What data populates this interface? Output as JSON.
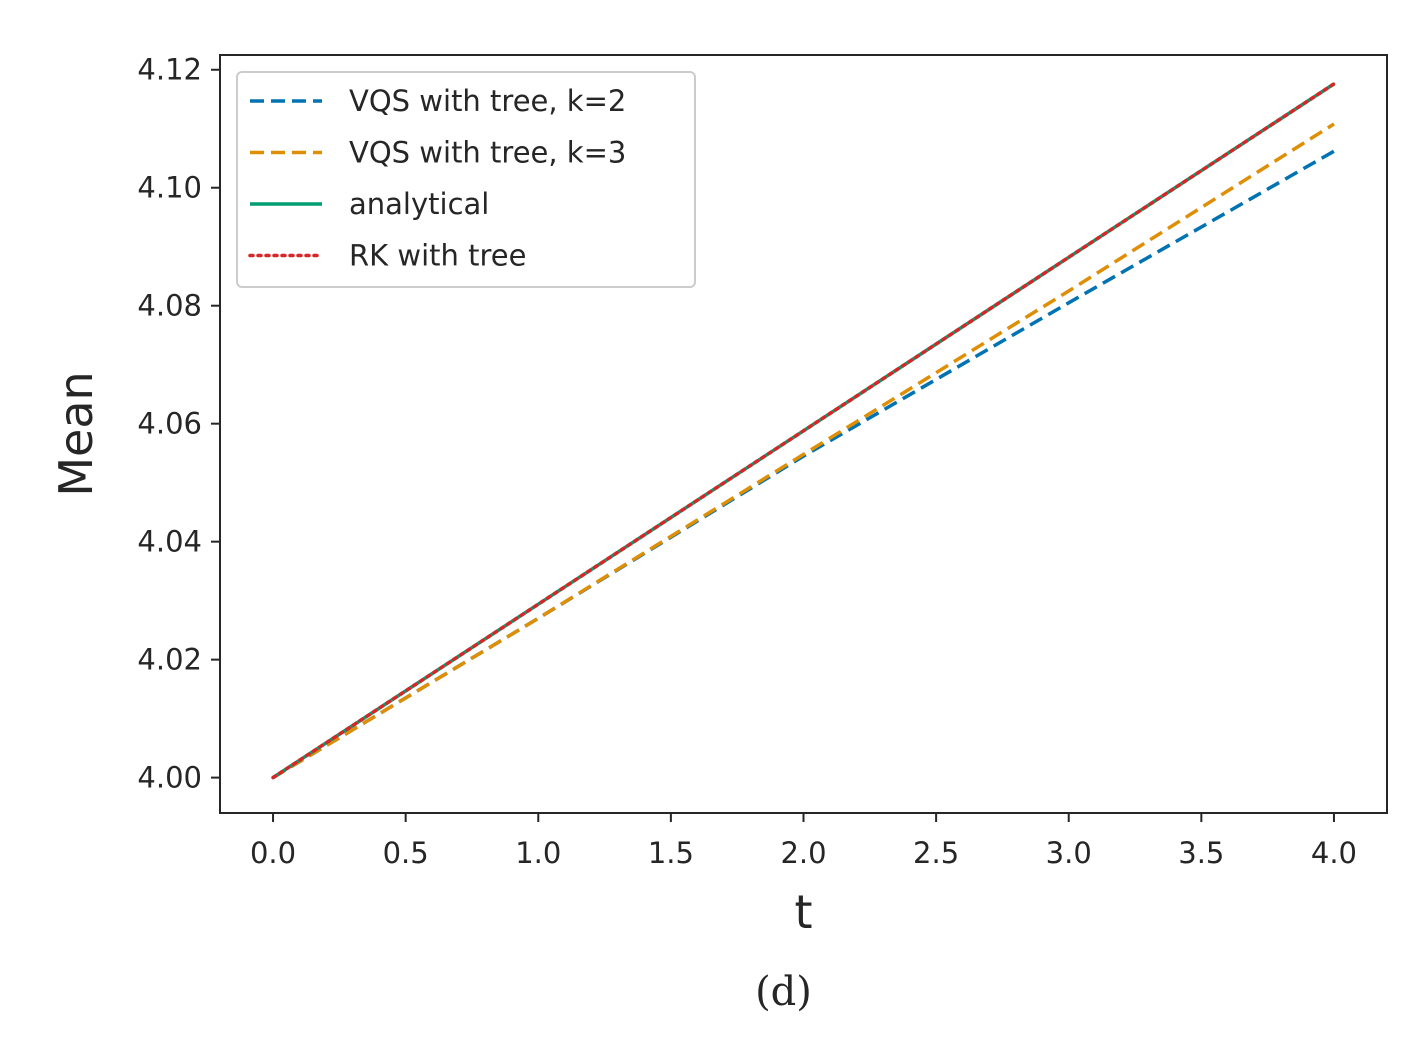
{
  "chart_data": {
    "type": "line",
    "xlabel": "t",
    "ylabel": "Mean",
    "caption": "(d)",
    "xlim": [
      -0.2,
      4.2
    ],
    "ylim": [
      3.994,
      4.1225
    ],
    "xticks": [
      0.0,
      0.5,
      1.0,
      1.5,
      2.0,
      2.5,
      3.0,
      3.5,
      4.0
    ],
    "xtick_labels": [
      "0.0",
      "0.5",
      "1.0",
      "1.5",
      "2.0",
      "2.5",
      "3.0",
      "3.5",
      "4.0"
    ],
    "yticks": [
      4.0,
      4.02,
      4.04,
      4.06,
      4.08,
      4.1,
      4.12
    ],
    "ytick_labels": [
      "4.00",
      "4.02",
      "4.04",
      "4.06",
      "4.08",
      "4.10",
      "4.12"
    ],
    "grid": false,
    "legend_position": "top-left",
    "x": [
      0.0,
      1.0,
      2.0,
      3.0,
      4.0
    ],
    "series": [
      {
        "name": "VQS with tree, k=2",
        "color": "#0173b2",
        "style": "dashed",
        "values": [
          4.0,
          4.027,
          4.0545,
          4.0805,
          4.1062
        ]
      },
      {
        "name": "VQS with tree, k=3",
        "color": "#de8f05",
        "style": "dashed",
        "values": [
          4.0,
          4.027,
          4.0548,
          4.0825,
          4.1108
        ]
      },
      {
        "name": "analytical",
        "color": "#029e73",
        "style": "solid",
        "values": [
          4.0,
          4.0294,
          4.0588,
          4.0882,
          4.1176
        ]
      },
      {
        "name": "RK with tree",
        "color": "#d62728",
        "style": "dotted",
        "values": [
          4.0,
          4.0294,
          4.0588,
          4.0882,
          4.1176
        ]
      }
    ]
  }
}
